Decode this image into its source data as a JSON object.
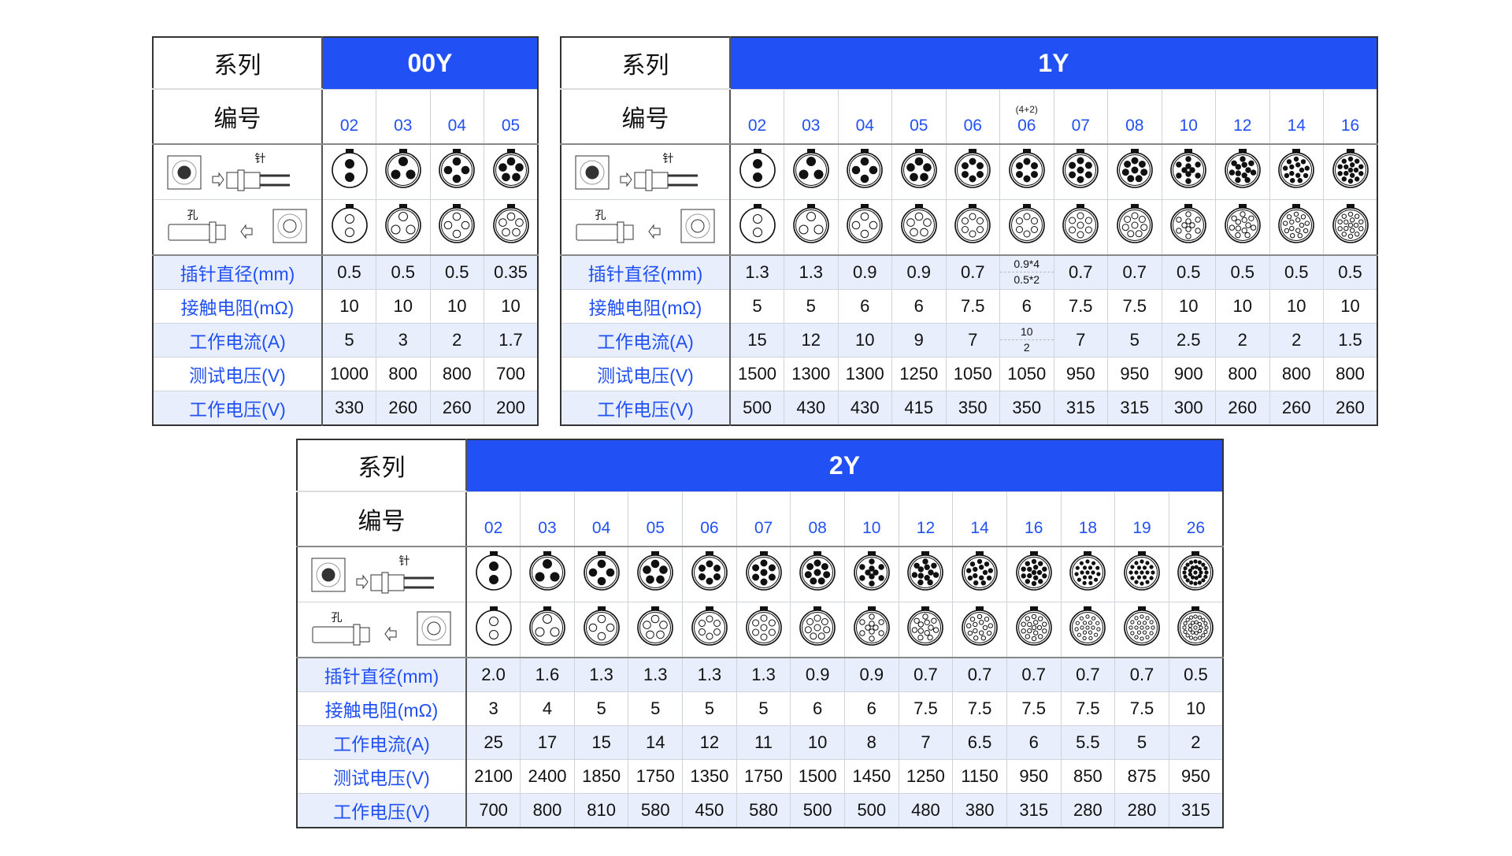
{
  "labels": {
    "series": "系列",
    "number": "编号",
    "pin": "针",
    "hole": "孔",
    "rows": [
      "插针直径(mm)",
      "接触电阻(mΩ)",
      "工作电流(A)",
      "测试电压(V)",
      "工作电压(V)"
    ]
  },
  "colors": {
    "header_blue": "#2150f5",
    "label_blue": "#2150f5",
    "row_shade": "#e8eefc"
  },
  "tables": [
    {
      "series": "00Y",
      "codes": [
        "02",
        "03",
        "04",
        "05"
      ],
      "code_notes": [
        "",
        "",
        "",
        ""
      ],
      "pins": [
        2,
        3,
        4,
        5
      ],
      "rows": [
        [
          "0.5",
          "0.5",
          "0.5",
          "0.35"
        ],
        [
          "10",
          "10",
          "10",
          "10"
        ],
        [
          "5",
          "3",
          "2",
          "1.7"
        ],
        [
          "1000",
          "800",
          "800",
          "700"
        ],
        [
          "330",
          "260",
          "260",
          "200"
        ]
      ]
    },
    {
      "series": "1Y",
      "codes": [
        "02",
        "03",
        "04",
        "05",
        "06",
        "06",
        "07",
        "08",
        "10",
        "12",
        "14",
        "16"
      ],
      "code_notes": [
        "",
        "",
        "",
        "",
        "",
        "(4+2)",
        "",
        "",
        "",
        "",
        "",
        ""
      ],
      "pins": [
        2,
        3,
        4,
        5,
        6,
        6,
        7,
        8,
        10,
        12,
        14,
        16
      ],
      "rows": [
        [
          "1.3",
          "1.3",
          "0.9",
          "0.9",
          "0.7",
          [
            "0.9*4",
            "0.5*2"
          ],
          "0.7",
          "0.7",
          "0.5",
          "0.5",
          "0.5",
          "0.5"
        ],
        [
          "5",
          "5",
          "6",
          "6",
          "7.5",
          "6",
          "7.5",
          "7.5",
          "10",
          "10",
          "10",
          "10"
        ],
        [
          "15",
          "12",
          "10",
          "9",
          "7",
          [
            "10",
            "2"
          ],
          "7",
          "5",
          "2.5",
          "2",
          "2",
          "1.5"
        ],
        [
          "1500",
          "1300",
          "1300",
          "1250",
          "1050",
          "1050",
          "950",
          "950",
          "900",
          "800",
          "800",
          "800"
        ],
        [
          "500",
          "430",
          "430",
          "415",
          "350",
          "350",
          "315",
          "315",
          "300",
          "260",
          "260",
          "260"
        ]
      ]
    },
    {
      "series": "2Y",
      "codes": [
        "02",
        "03",
        "04",
        "05",
        "06",
        "07",
        "08",
        "10",
        "12",
        "14",
        "16",
        "18",
        "19",
        "26"
      ],
      "code_notes": [
        "",
        "",
        "",
        "",
        "",
        "",
        "",
        "",
        "",
        "",
        "",
        "",
        "",
        ""
      ],
      "pins": [
        2,
        3,
        4,
        5,
        6,
        7,
        8,
        10,
        12,
        14,
        16,
        18,
        19,
        26
      ],
      "rows": [
        [
          "2.0",
          "1.6",
          "1.3",
          "1.3",
          "1.3",
          "1.3",
          "0.9",
          "0.9",
          "0.7",
          "0.7",
          "0.7",
          "0.7",
          "0.7",
          "0.5"
        ],
        [
          "3",
          "4",
          "5",
          "5",
          "5",
          "5",
          "6",
          "6",
          "7.5",
          "7.5",
          "7.5",
          "7.5",
          "7.5",
          "10"
        ],
        [
          "25",
          "17",
          "15",
          "14",
          "12",
          "11",
          "10",
          "8",
          "7",
          "6.5",
          "6",
          "5.5",
          "5",
          "2"
        ],
        [
          "2100",
          "2400",
          "1850",
          "1750",
          "1350",
          "1750",
          "1500",
          "1450",
          "1250",
          "1150",
          "950",
          "850",
          "875",
          "950"
        ],
        [
          "700",
          "800",
          "810",
          "580",
          "450",
          "580",
          "500",
          "500",
          "480",
          "380",
          "315",
          "280",
          "280",
          "315"
        ]
      ]
    }
  ]
}
